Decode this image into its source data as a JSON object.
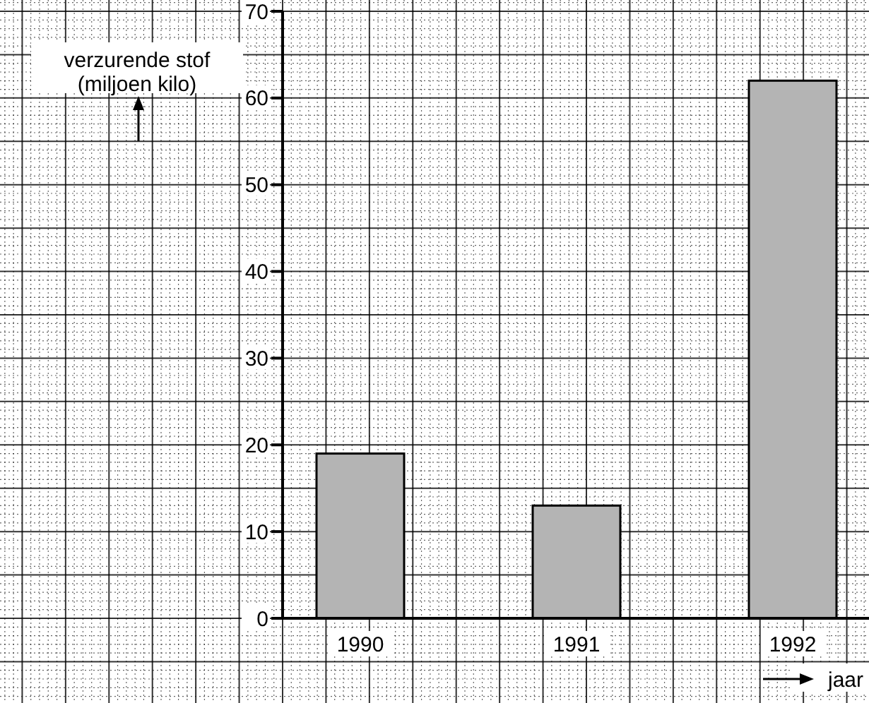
{
  "chart_data": {
    "type": "bar",
    "ylabel": "verzurende stof\n(miljoen kilo)",
    "xlabel": "jaar",
    "categories": [
      "1990",
      "1991",
      "1992"
    ],
    "values": [
      19,
      13,
      62
    ],
    "color": "#b4b4b4",
    "ylim": [
      0,
      70
    ],
    "yticks": [
      0,
      10,
      20,
      30,
      40,
      50,
      60,
      70
    ],
    "grid": true
  }
}
